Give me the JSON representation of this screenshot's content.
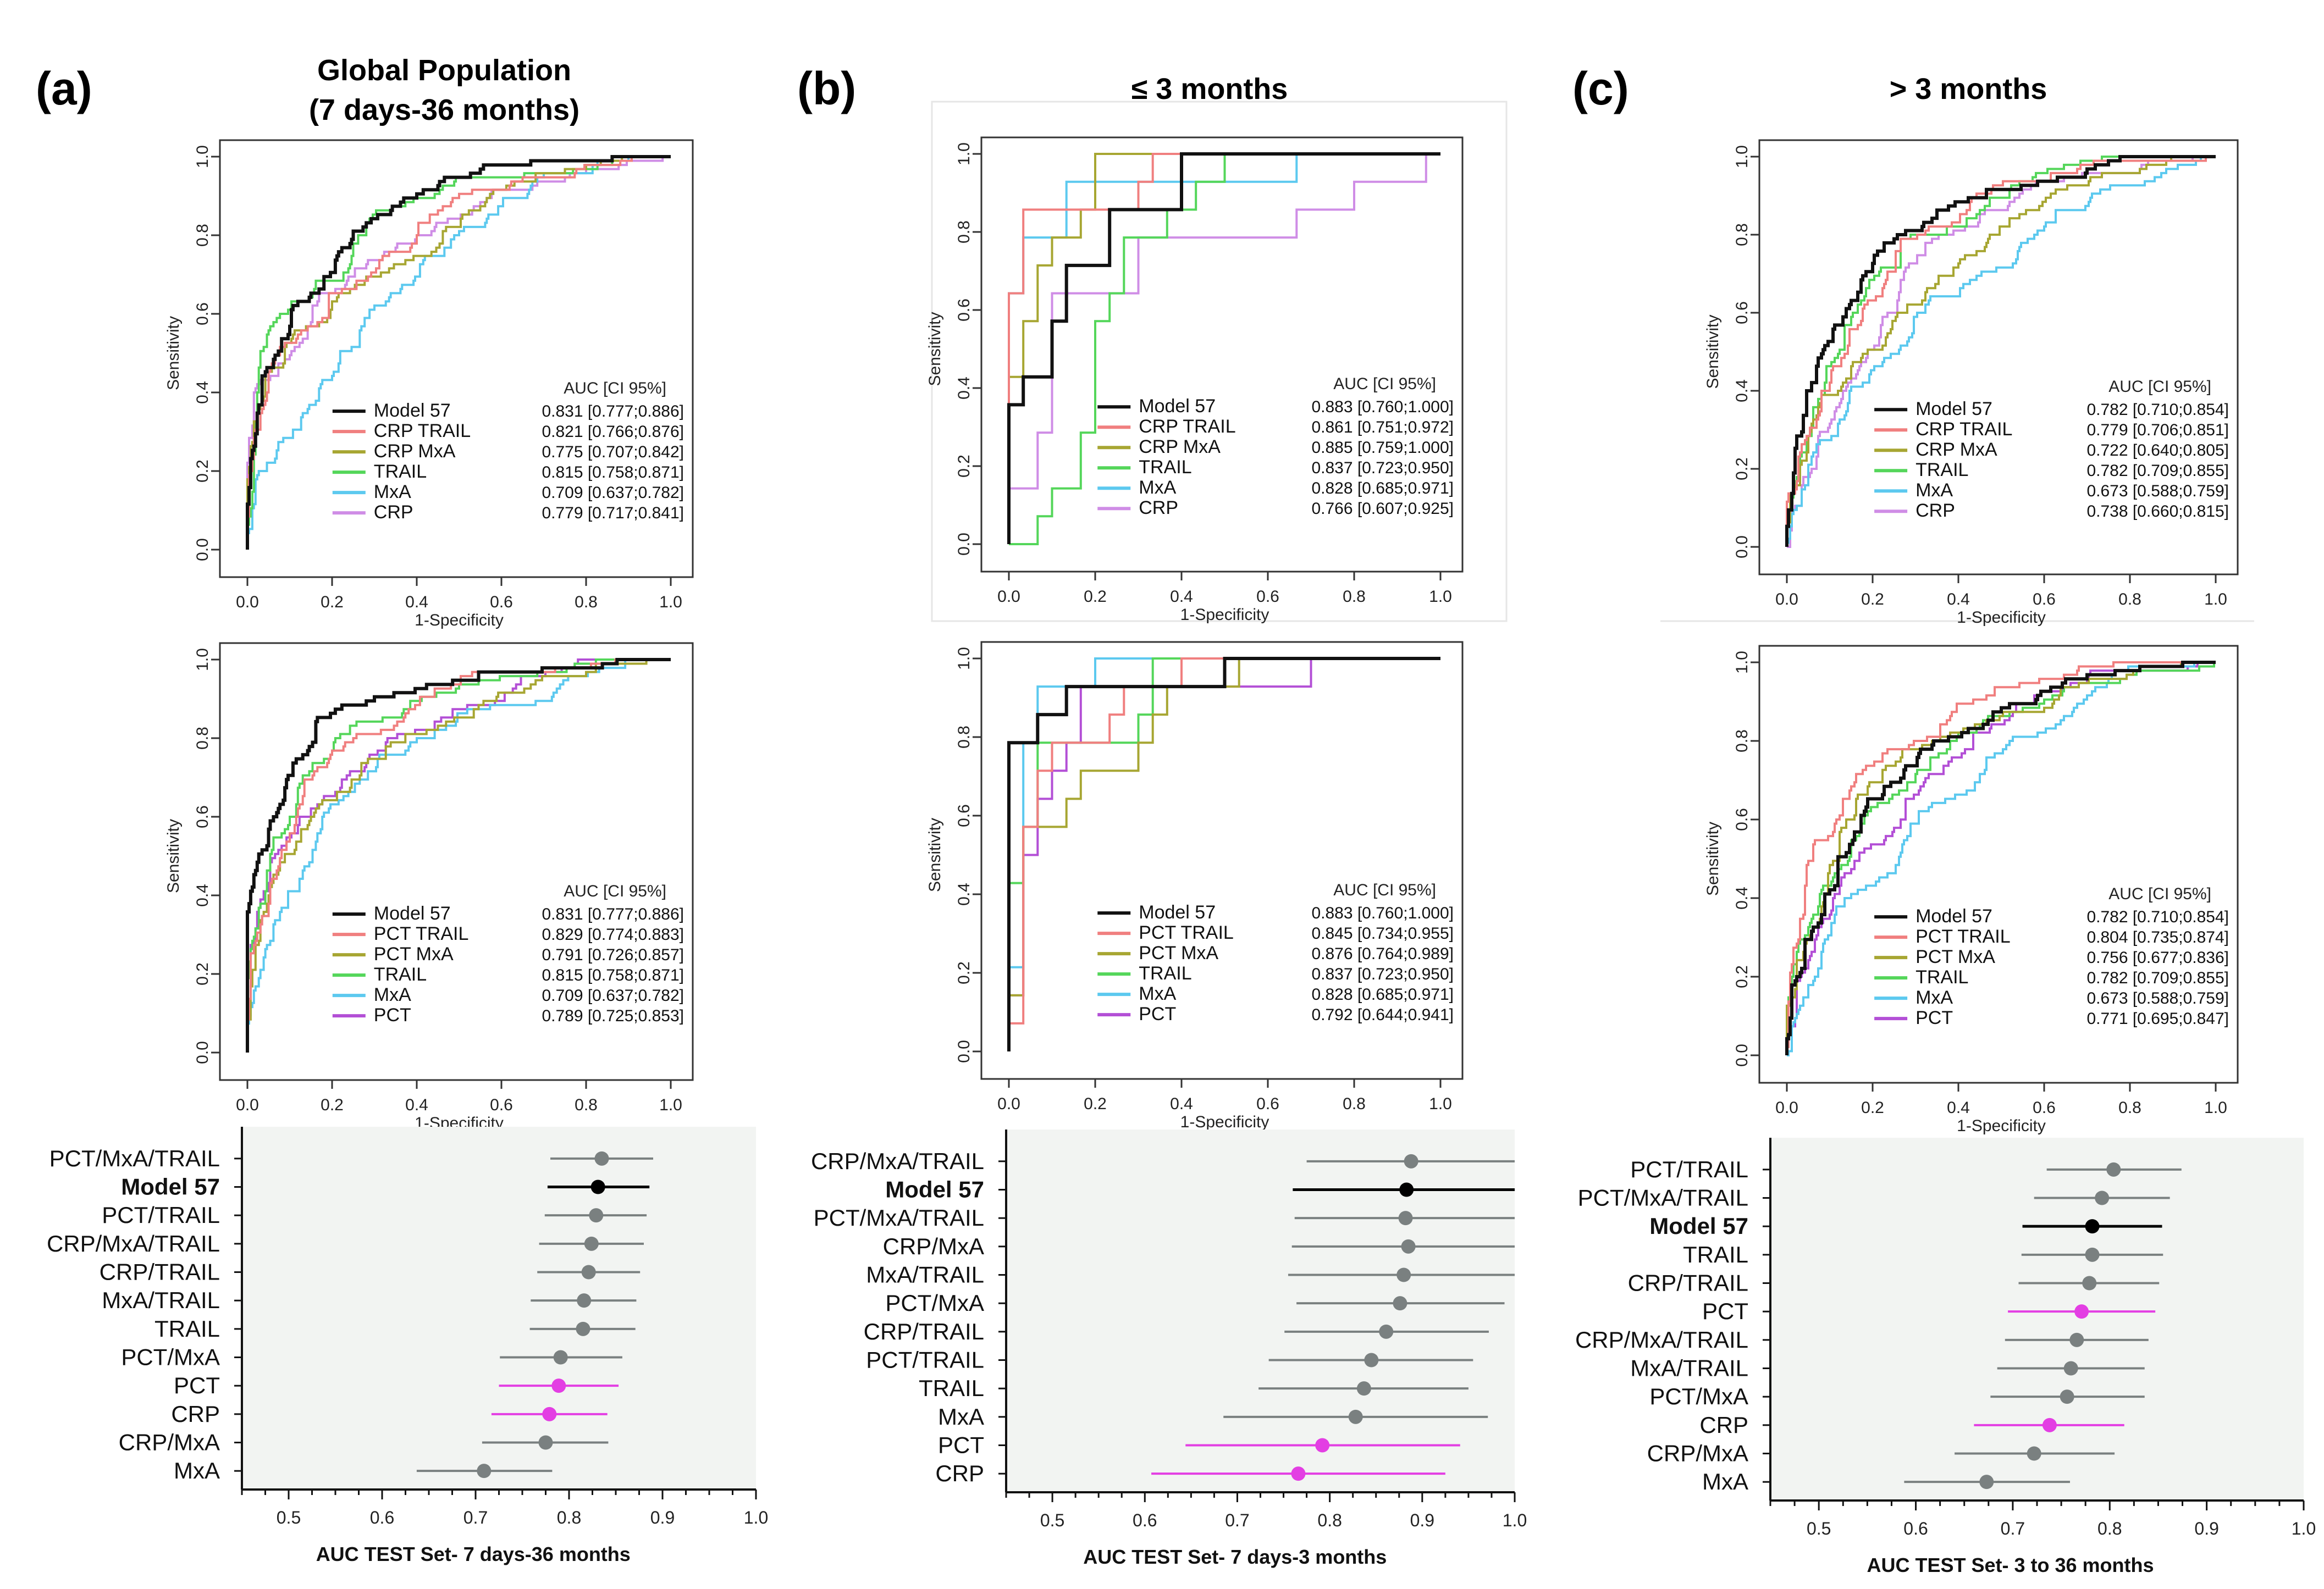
{
  "colors": {
    "Model 57": "#111111",
    "CRP TRAIL": "#f07f7f",
    "PCT TRAIL": "#f07f7f",
    "CRP MxA": "#a7a632",
    "PCT MxA": "#a7a632",
    "TRAIL": "#54d65a",
    "MxA": "#5cc9ef",
    "CRP": "#cf8de6",
    "PCT": "#b34fd6",
    "forest_gray": "#7a8080",
    "forest_magenta": "#e33ee3",
    "forest_black": "#000000",
    "forest_bg": "#f2f4f2"
  },
  "panels": [
    {
      "letter": "(a)",
      "title": [
        "Global Population",
        "(7 days-36 months)"
      ]
    },
    {
      "letter": "(b)",
      "title": [
        "≤ 3 months"
      ]
    },
    {
      "letter": "(c)",
      "title": [
        "> 3 months"
      ]
    }
  ],
  "roc_common": {
    "xlabel": "1-Specificity",
    "ylabel": "Sensitivity",
    "legend_header": "AUC [CI 95%]",
    "ticks": [
      "0.0",
      "0.2",
      "0.4",
      "0.6",
      "0.8",
      "1.0"
    ]
  },
  "chart_data": [
    {
      "id": "a-top",
      "type": "line",
      "title": "Global Population (7 days-36 months)",
      "xlabel": "1-Specificity",
      "ylabel": "Sensitivity",
      "xlim": [
        0,
        1
      ],
      "ylim": [
        0,
        1
      ],
      "legend_header": "AUC [CI 95%]",
      "series": [
        {
          "name": "Model 57",
          "auc": "0.831 [0.777;0.886]"
        },
        {
          "name": "CRP TRAIL",
          "auc": "0.821 [0.766;0.876]"
        },
        {
          "name": "CRP MxA",
          "auc": "0.775 [0.707;0.842]"
        },
        {
          "name": "TRAIL",
          "auc": "0.815 [0.758;0.871]"
        },
        {
          "name": "MxA",
          "auc": "0.709 [0.637;0.782]"
        },
        {
          "name": "CRP",
          "auc": "0.779 [0.717;0.841]"
        }
      ]
    },
    {
      "id": "a-bot",
      "type": "line",
      "title": "Global Population (7 days-36 months)",
      "xlabel": "1-Specificity",
      "ylabel": "Sensitivity",
      "xlim": [
        0,
        1
      ],
      "ylim": [
        0,
        1
      ],
      "legend_header": "AUC [CI 95%]",
      "series": [
        {
          "name": "Model 57",
          "auc": "0.831 [0.777;0.886]"
        },
        {
          "name": "PCT TRAIL",
          "auc": "0.829 [0.774;0.883]"
        },
        {
          "name": "PCT MxA",
          "auc": "0.791 [0.726;0.857]"
        },
        {
          "name": "TRAIL",
          "auc": "0.815 [0.758;0.871]"
        },
        {
          "name": "MxA",
          "auc": "0.709 [0.637;0.782]"
        },
        {
          "name": "PCT",
          "auc": "0.789 [0.725;0.853]"
        }
      ]
    },
    {
      "id": "b-top",
      "type": "line",
      "title": "≤ 3 months",
      "xlabel": "1-Specificity",
      "ylabel": "Sensitivity",
      "xlim": [
        0,
        1
      ],
      "ylim": [
        0,
        1
      ],
      "legend_header": "AUC [CI 95%]",
      "series": [
        {
          "name": "Model 57",
          "auc": "0.883 [0.760;1.000]"
        },
        {
          "name": "CRP TRAIL",
          "auc": "0.861 [0.751;0.972]"
        },
        {
          "name": "CRP MxA",
          "auc": "0.885 [0.759;1.000]"
        },
        {
          "name": "TRAIL",
          "auc": "0.837 [0.723;0.950]"
        },
        {
          "name": "MxA",
          "auc": "0.828 [0.685;0.971]"
        },
        {
          "name": "CRP",
          "auc": "0.766 [0.607;0.925]"
        }
      ]
    },
    {
      "id": "b-bot",
      "type": "line",
      "title": "≤ 3 months",
      "xlabel": "1-Specificity",
      "ylabel": "Sensitivity",
      "xlim": [
        0,
        1
      ],
      "ylim": [
        0,
        1
      ],
      "legend_header": "AUC [CI 95%]",
      "series": [
        {
          "name": "Model 57",
          "auc": "0.883 [0.760;1.000]"
        },
        {
          "name": "PCT TRAIL",
          "auc": "0.845 [0.734;0.955]"
        },
        {
          "name": "PCT MxA",
          "auc": "0.876 [0.764;0.989]"
        },
        {
          "name": "TRAIL",
          "auc": "0.837 [0.723;0.950]"
        },
        {
          "name": "MxA",
          "auc": "0.828 [0.685;0.971]"
        },
        {
          "name": "PCT",
          "auc": "0.792 [0.644;0.941]"
        }
      ]
    },
    {
      "id": "c-top",
      "type": "line",
      "title": "> 3 months",
      "xlabel": "1-Specificity",
      "ylabel": "Sensitivity",
      "xlim": [
        0,
        1
      ],
      "ylim": [
        0,
        1
      ],
      "legend_header": "AUC [CI 95%]",
      "series": [
        {
          "name": "Model 57",
          "auc": "0.782 [0.710;0.854]"
        },
        {
          "name": "CRP TRAIL",
          "auc": "0.779 [0.706;0.851]"
        },
        {
          "name": "CRP MxA",
          "auc": "0.722 [0.640;0.805]"
        },
        {
          "name": "TRAIL",
          "auc": "0.782 [0.709;0.855]"
        },
        {
          "name": "MxA",
          "auc": "0.673 [0.588;0.759]"
        },
        {
          "name": "CRP",
          "auc": "0.738 [0.660;0.815]"
        }
      ]
    },
    {
      "id": "c-bot",
      "type": "line",
      "title": "> 3 months",
      "xlabel": "1-Specificity",
      "ylabel": "Sensitivity",
      "xlim": [
        0,
        1
      ],
      "ylim": [
        0,
        1
      ],
      "legend_header": "AUC [CI 95%]",
      "series": [
        {
          "name": "Model 57",
          "auc": "0.782 [0.710;0.854]"
        },
        {
          "name": "PCT TRAIL",
          "auc": "0.804 [0.735;0.874]"
        },
        {
          "name": "PCT MxA",
          "auc": "0.756 [0.677;0.836]"
        },
        {
          "name": "TRAIL",
          "auc": "0.782 [0.709;0.855]"
        },
        {
          "name": "MxA",
          "auc": "0.673 [0.588;0.759]"
        },
        {
          "name": "PCT",
          "auc": "0.771 [0.695;0.847]"
        }
      ]
    },
    {
      "id": "a-forest",
      "type": "scatter",
      "xlabel": "AUC TEST Set-  7 days-36 months",
      "xlim": [
        0.45,
        1.0
      ],
      "xticks": [
        "0.5",
        "0.6",
        "0.7",
        "0.8",
        "0.9",
        "1.0"
      ],
      "rows": [
        {
          "label": "PCT/MxA/TRAIL",
          "auc": 0.835,
          "lo": 0.78,
          "hi": 0.89,
          "style": "gray"
        },
        {
          "label": "Model 57",
          "auc": 0.831,
          "lo": 0.777,
          "hi": 0.886,
          "style": "black"
        },
        {
          "label": "PCT/TRAIL",
          "auc": 0.829,
          "lo": 0.774,
          "hi": 0.883,
          "style": "gray"
        },
        {
          "label": "CRP/MxA/TRAIL",
          "auc": 0.824,
          "lo": 0.768,
          "hi": 0.88,
          "style": "gray"
        },
        {
          "label": "CRP/TRAIL",
          "auc": 0.821,
          "lo": 0.766,
          "hi": 0.876,
          "style": "gray"
        },
        {
          "label": "MxA/TRAIL",
          "auc": 0.816,
          "lo": 0.759,
          "hi": 0.872,
          "style": "gray"
        },
        {
          "label": "TRAIL",
          "auc": 0.815,
          "lo": 0.758,
          "hi": 0.871,
          "style": "gray"
        },
        {
          "label": "PCT/MxA",
          "auc": 0.791,
          "lo": 0.726,
          "hi": 0.857,
          "style": "gray"
        },
        {
          "label": "PCT",
          "auc": 0.789,
          "lo": 0.725,
          "hi": 0.853,
          "style": "magenta"
        },
        {
          "label": "CRP",
          "auc": 0.779,
          "lo": 0.717,
          "hi": 0.841,
          "style": "magenta"
        },
        {
          "label": "CRP/MxA",
          "auc": 0.775,
          "lo": 0.707,
          "hi": 0.842,
          "style": "gray"
        },
        {
          "label": "MxA",
          "auc": 0.709,
          "lo": 0.637,
          "hi": 0.782,
          "style": "gray"
        }
      ]
    },
    {
      "id": "b-forest",
      "type": "scatter",
      "xlabel": "AUC TEST Set-  7 days-3 months",
      "xlim": [
        0.45,
        1.0
      ],
      "xticks": [
        "0.5",
        "0.6",
        "0.7",
        "0.8",
        "0.9",
        "1.0"
      ],
      "rows": [
        {
          "label": "CRP/MxA/TRAIL",
          "auc": 0.888,
          "lo": 0.775,
          "hi": 1.0,
          "style": "gray"
        },
        {
          "label": "Model 57",
          "auc": 0.883,
          "lo": 0.76,
          "hi": 1.0,
          "style": "black"
        },
        {
          "label": "PCT/MxA/TRAIL",
          "auc": 0.882,
          "lo": 0.762,
          "hi": 1.0,
          "style": "gray"
        },
        {
          "label": "CRP/MxA",
          "auc": 0.885,
          "lo": 0.759,
          "hi": 1.0,
          "style": "gray"
        },
        {
          "label": "MxA/TRAIL",
          "auc": 0.88,
          "lo": 0.755,
          "hi": 1.0,
          "style": "gray"
        },
        {
          "label": "PCT/MxA",
          "auc": 0.876,
          "lo": 0.764,
          "hi": 0.989,
          "style": "gray"
        },
        {
          "label": "CRP/TRAIL",
          "auc": 0.861,
          "lo": 0.751,
          "hi": 0.972,
          "style": "gray"
        },
        {
          "label": "PCT/TRAIL",
          "auc": 0.845,
          "lo": 0.734,
          "hi": 0.955,
          "style": "gray"
        },
        {
          "label": "TRAIL",
          "auc": 0.837,
          "lo": 0.723,
          "hi": 0.95,
          "style": "gray"
        },
        {
          "label": "MxA",
          "auc": 0.828,
          "lo": 0.685,
          "hi": 0.971,
          "style": "gray"
        },
        {
          "label": "PCT",
          "auc": 0.792,
          "lo": 0.644,
          "hi": 0.941,
          "style": "magenta"
        },
        {
          "label": "CRP",
          "auc": 0.766,
          "lo": 0.607,
          "hi": 0.925,
          "style": "magenta"
        }
      ]
    },
    {
      "id": "c-forest",
      "type": "scatter",
      "xlabel": "AUC TEST Set-  3 to 36 months",
      "xlim": [
        0.45,
        1.0
      ],
      "xticks": [
        "0.5",
        "0.6",
        "0.7",
        "0.8",
        "0.9",
        "1.0"
      ],
      "rows": [
        {
          "label": "PCT/TRAIL",
          "auc": 0.804,
          "lo": 0.735,
          "hi": 0.874,
          "style": "gray"
        },
        {
          "label": "PCT/MxA/TRAIL",
          "auc": 0.792,
          "lo": 0.722,
          "hi": 0.862,
          "style": "gray"
        },
        {
          "label": "Model 57",
          "auc": 0.782,
          "lo": 0.71,
          "hi": 0.854,
          "style": "black"
        },
        {
          "label": "TRAIL",
          "auc": 0.782,
          "lo": 0.709,
          "hi": 0.855,
          "style": "gray"
        },
        {
          "label": "CRP/TRAIL",
          "auc": 0.779,
          "lo": 0.706,
          "hi": 0.851,
          "style": "gray"
        },
        {
          "label": "PCT",
          "auc": 0.771,
          "lo": 0.695,
          "hi": 0.847,
          "style": "magenta"
        },
        {
          "label": "CRP/MxA/TRAIL",
          "auc": 0.766,
          "lo": 0.692,
          "hi": 0.84,
          "style": "gray"
        },
        {
          "label": "MxA/TRAIL",
          "auc": 0.76,
          "lo": 0.684,
          "hi": 0.836,
          "style": "gray"
        },
        {
          "label": "PCT/MxA",
          "auc": 0.756,
          "lo": 0.677,
          "hi": 0.836,
          "style": "gray"
        },
        {
          "label": "CRP",
          "auc": 0.738,
          "lo": 0.66,
          "hi": 0.815,
          "style": "magenta"
        },
        {
          "label": "CRP/MxA",
          "auc": 0.722,
          "lo": 0.64,
          "hi": 0.805,
          "style": "gray"
        },
        {
          "label": "MxA",
          "auc": 0.673,
          "lo": 0.588,
          "hi": 0.759,
          "style": "gray"
        }
      ]
    }
  ]
}
